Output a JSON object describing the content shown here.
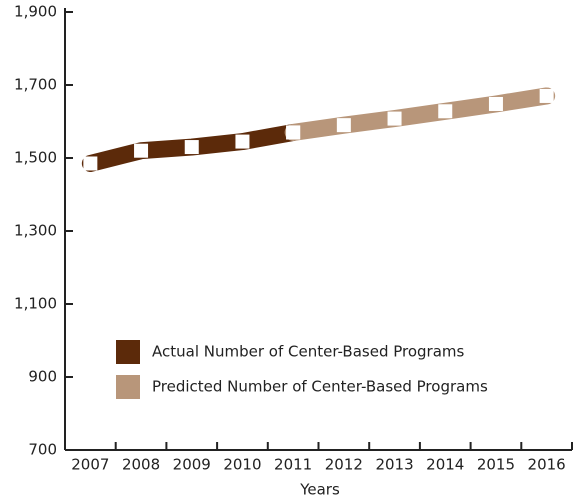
{
  "chart_data": {
    "type": "line",
    "x_label": "Years",
    "categories": [
      "2007",
      "2008",
      "2009",
      "2010",
      "2011",
      "2012",
      "2013",
      "2014",
      "2015",
      "2016"
    ],
    "series": [
      {
        "name": "Actual Number of Center-Based Programs",
        "color": "#5c2a0a",
        "values": [
          1485,
          1520,
          1530,
          1545,
          1570,
          null,
          null,
          null,
          null,
          null
        ]
      },
      {
        "name": "Predicted Number of Center-Based Programs",
        "color": "#b8967a",
        "values": [
          null,
          null,
          null,
          null,
          1570,
          1590,
          1608,
          1628,
          1648,
          1670
        ]
      }
    ],
    "ylim": [
      700,
      1900
    ],
    "yticks": [
      700,
      900,
      {
        "value": 1100,
        "label": "1,100"
      },
      {
        "value": 1300,
        "label": "1,300"
      },
      {
        "value": 1500,
        "label": "1,500"
      },
      {
        "value": 1700,
        "label": "1,700"
      },
      {
        "value": 1900,
        "label": "1,900"
      }
    ]
  }
}
